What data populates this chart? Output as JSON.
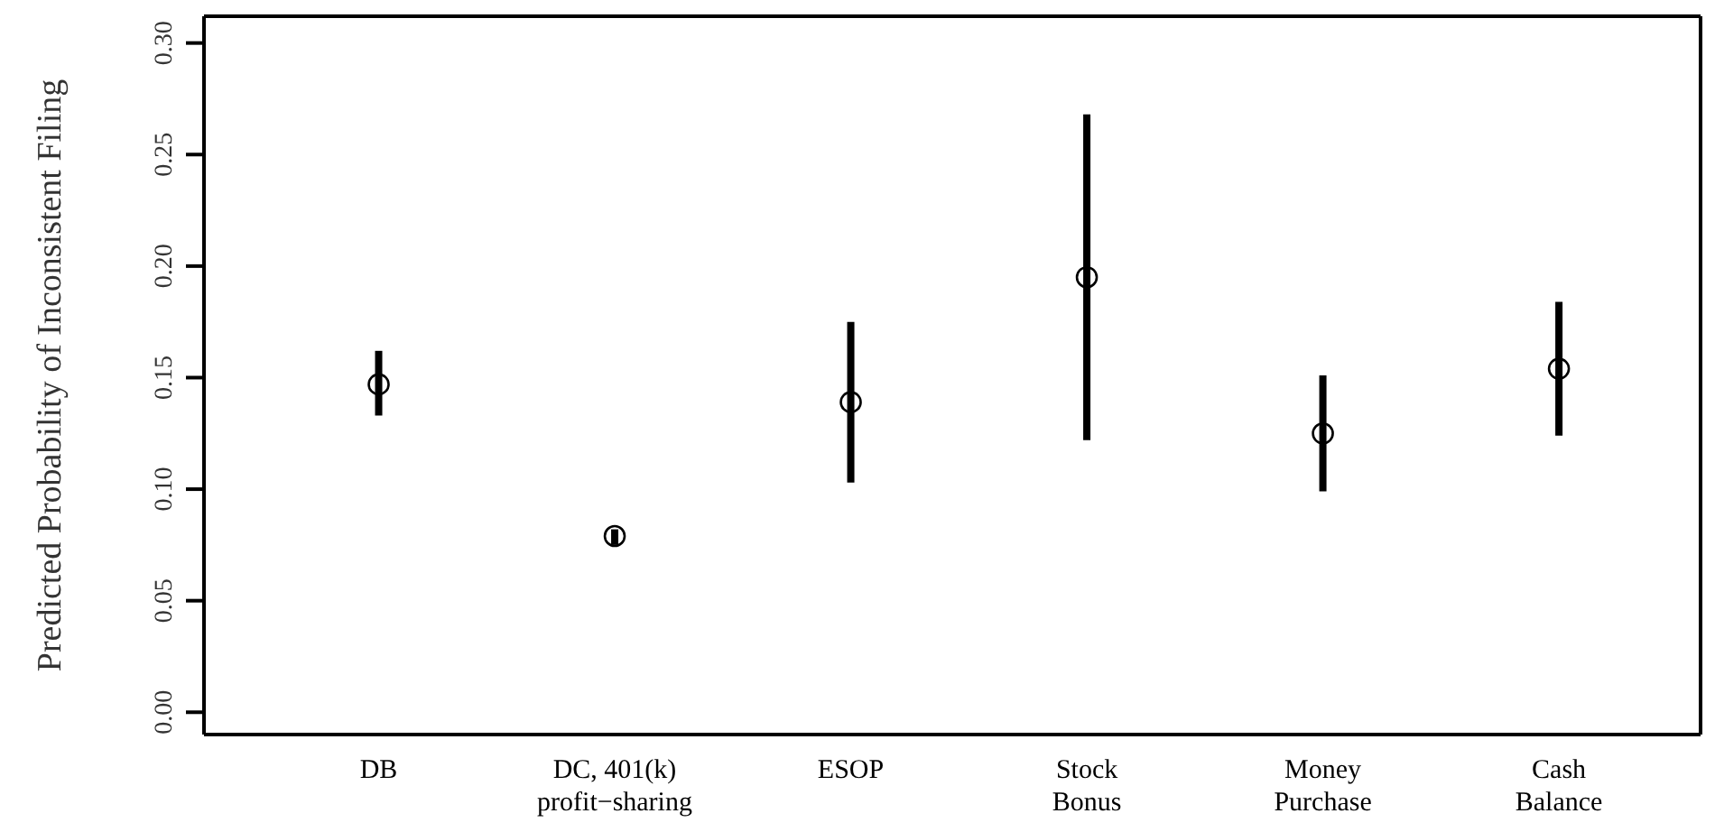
{
  "chart_data": {
    "type": "scatter",
    "ylabel": "Predicted Probability of Inconsistent Filing",
    "categories": [
      "DB",
      "DC, 401(k)\nprofit−sharing",
      "ESOP",
      "Stock\nBonus",
      "Money\nPurchase",
      "Cash\nBalance"
    ],
    "values": [
      0.147,
      0.079,
      0.139,
      0.195,
      0.125,
      0.154
    ],
    "errors": [
      [
        0.133,
        0.162
      ],
      [
        0.075,
        0.082
      ],
      [
        0.103,
        0.175
      ],
      [
        0.122,
        0.268
      ],
      [
        0.099,
        0.151
      ],
      [
        0.124,
        0.184
      ]
    ],
    "color": "#000000",
    "marker": "circle",
    "ylim": [
      -0.01,
      0.312
    ],
    "yticks": [
      {
        "value": 0,
        "label": "0.00"
      },
      {
        "value": 0.05,
        "label": "0.05"
      },
      {
        "value": 0.1,
        "label": "0.10"
      },
      {
        "value": 0.15,
        "label": "0.15"
      },
      {
        "value": 0.2,
        "label": "0.20"
      },
      {
        "value": 0.25,
        "label": "0.25"
      },
      {
        "value": 0.3,
        "label": "0.30"
      }
    ]
  }
}
